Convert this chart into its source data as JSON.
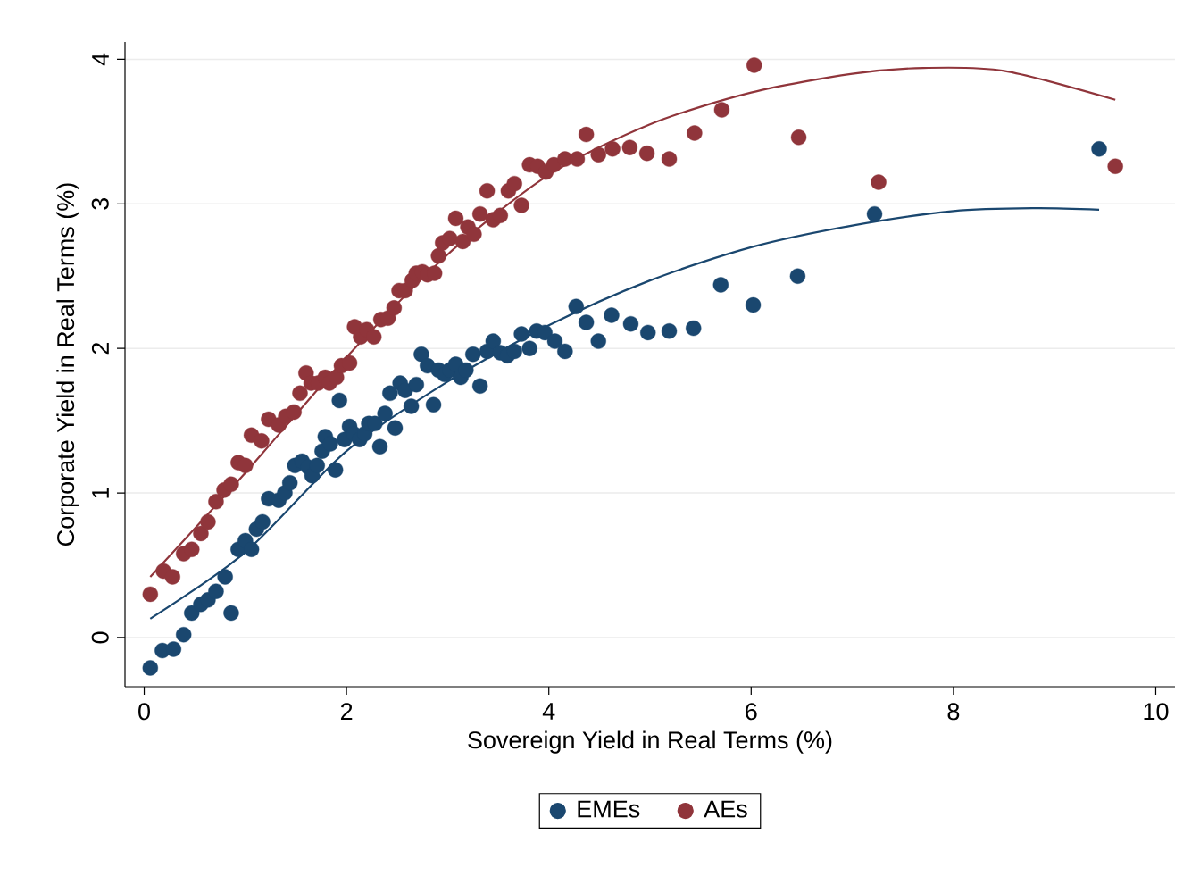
{
  "chart_data": {
    "type": "scatter",
    "xlabel": "Sovereign Yield in Real Terms (%)",
    "ylabel": "Corporate Yield in Real Terms (%)",
    "xlim": [
      -0.19,
      10.19
    ],
    "ylim": [
      -0.34,
      4.12
    ],
    "xticks": [
      0,
      2,
      4,
      6,
      8,
      10
    ],
    "yticks": [
      0,
      1,
      2,
      3,
      4
    ],
    "grid": "y",
    "legend": "bottom",
    "series": [
      {
        "name": "EMEs",
        "marker": "circle",
        "color": "#1a476f",
        "x": [
          0.06,
          0.18,
          0.29,
          0.39,
          0.47,
          0.56,
          0.63,
          0.71,
          0.8,
          0.86,
          0.93,
          1.0,
          1.06,
          1.11,
          1.17,
          1.23,
          1.33,
          1.39,
          1.44,
          1.49,
          1.56,
          1.62,
          1.66,
          1.71,
          1.76,
          1.79,
          1.84,
          1.89,
          1.93,
          1.98,
          2.03,
          2.07,
          2.13,
          2.18,
          2.22,
          2.28,
          2.33,
          2.38,
          2.43,
          2.48,
          2.53,
          2.58,
          2.64,
          2.69,
          2.74,
          2.8,
          2.86,
          2.91,
          2.97,
          3.02,
          3.08,
          3.13,
          3.18,
          3.25,
          3.32,
          3.39,
          3.45,
          3.52,
          3.59,
          3.66,
          3.73,
          3.81,
          3.88,
          3.96,
          4.06,
          4.16,
          4.27,
          4.37,
          4.49,
          4.62,
          4.81,
          4.98,
          5.19,
          5.43,
          5.7,
          6.02,
          6.46,
          7.22,
          9.44
        ],
        "values": [
          -0.21,
          -0.09,
          -0.08,
          0.02,
          0.17,
          0.23,
          0.26,
          0.32,
          0.42,
          0.17,
          0.61,
          0.67,
          0.61,
          0.75,
          0.8,
          0.96,
          0.95,
          1.0,
          1.07,
          1.19,
          1.22,
          1.18,
          1.12,
          1.19,
          1.29,
          1.39,
          1.34,
          1.16,
          1.64,
          1.37,
          1.46,
          1.41,
          1.37,
          1.41,
          1.48,
          1.48,
          1.32,
          1.55,
          1.69,
          1.45,
          1.76,
          1.71,
          1.6,
          1.75,
          1.96,
          1.88,
          1.61,
          1.85,
          1.82,
          1.85,
          1.89,
          1.8,
          1.85,
          1.96,
          1.74,
          1.98,
          2.05,
          1.97,
          1.95,
          1.98,
          2.1,
          2.0,
          2.12,
          2.11,
          2.05,
          1.98,
          2.29,
          2.18,
          2.05,
          2.23,
          2.17,
          2.11,
          2.12,
          2.14,
          2.44,
          2.3,
          2.5,
          2.93,
          3.38
        ]
      },
      {
        "name": "AEs",
        "marker": "circle",
        "color": "#90353b",
        "x": [
          0.06,
          0.19,
          0.28,
          0.39,
          0.47,
          0.56,
          0.63,
          0.71,
          0.79,
          0.86,
          0.93,
          1.0,
          1.06,
          1.16,
          1.23,
          1.33,
          1.4,
          1.48,
          1.54,
          1.6,
          1.65,
          1.72,
          1.79,
          1.83,
          1.9,
          1.95,
          2.03,
          2.08,
          2.14,
          2.2,
          2.27,
          2.34,
          2.41,
          2.47,
          2.52,
          2.58,
          2.65,
          2.69,
          2.75,
          2.8,
          2.87,
          2.91,
          2.95,
          3.02,
          3.08,
          3.15,
          3.2,
          3.26,
          3.32,
          3.39,
          3.45,
          3.52,
          3.6,
          3.66,
          3.73,
          3.81,
          3.89,
          3.97,
          4.05,
          4.16,
          4.28,
          4.37,
          4.49,
          4.63,
          4.8,
          4.97,
          5.19,
          5.44,
          5.71,
          6.03,
          6.47,
          7.26,
          9.6
        ],
        "values": [
          0.3,
          0.46,
          0.42,
          0.58,
          0.61,
          0.72,
          0.8,
          0.94,
          1.02,
          1.06,
          1.21,
          1.19,
          1.4,
          1.36,
          1.51,
          1.47,
          1.53,
          1.56,
          1.69,
          1.83,
          1.76,
          1.76,
          1.8,
          1.76,
          1.8,
          1.88,
          1.9,
          2.15,
          2.08,
          2.13,
          2.08,
          2.2,
          2.21,
          2.28,
          2.4,
          2.4,
          2.47,
          2.52,
          2.53,
          2.51,
          2.52,
          2.64,
          2.73,
          2.76,
          2.9,
          2.74,
          2.84,
          2.79,
          2.93,
          3.09,
          2.89,
          2.92,
          3.09,
          3.14,
          2.99,
          3.27,
          3.26,
          3.22,
          3.27,
          3.31,
          3.31,
          3.48,
          3.34,
          3.38,
          3.39,
          3.35,
          3.31,
          3.49,
          3.65,
          3.96,
          3.46,
          3.15,
          3.26
        ]
      },
      {
        "type": "line",
        "marker": "none",
        "color": "#1a476f",
        "x": [
          0.06,
          1,
          2,
          3,
          4,
          5,
          6,
          7,
          8,
          8.8,
          9.44
        ],
        "values": [
          0.13,
          0.59,
          1.29,
          1.77,
          2.16,
          2.47,
          2.7,
          2.85,
          2.95,
          2.97,
          2.96
        ]
      },
      {
        "type": "line",
        "marker": "none",
        "color": "#90353b",
        "x": [
          0.06,
          1,
          2,
          3,
          4,
          5,
          6,
          7,
          7.7,
          8.5,
          9.6
        ],
        "values": [
          0.42,
          1.14,
          1.94,
          2.65,
          3.2,
          3.55,
          3.77,
          3.9,
          3.94,
          3.92,
          3.72
        ]
      }
    ]
  }
}
